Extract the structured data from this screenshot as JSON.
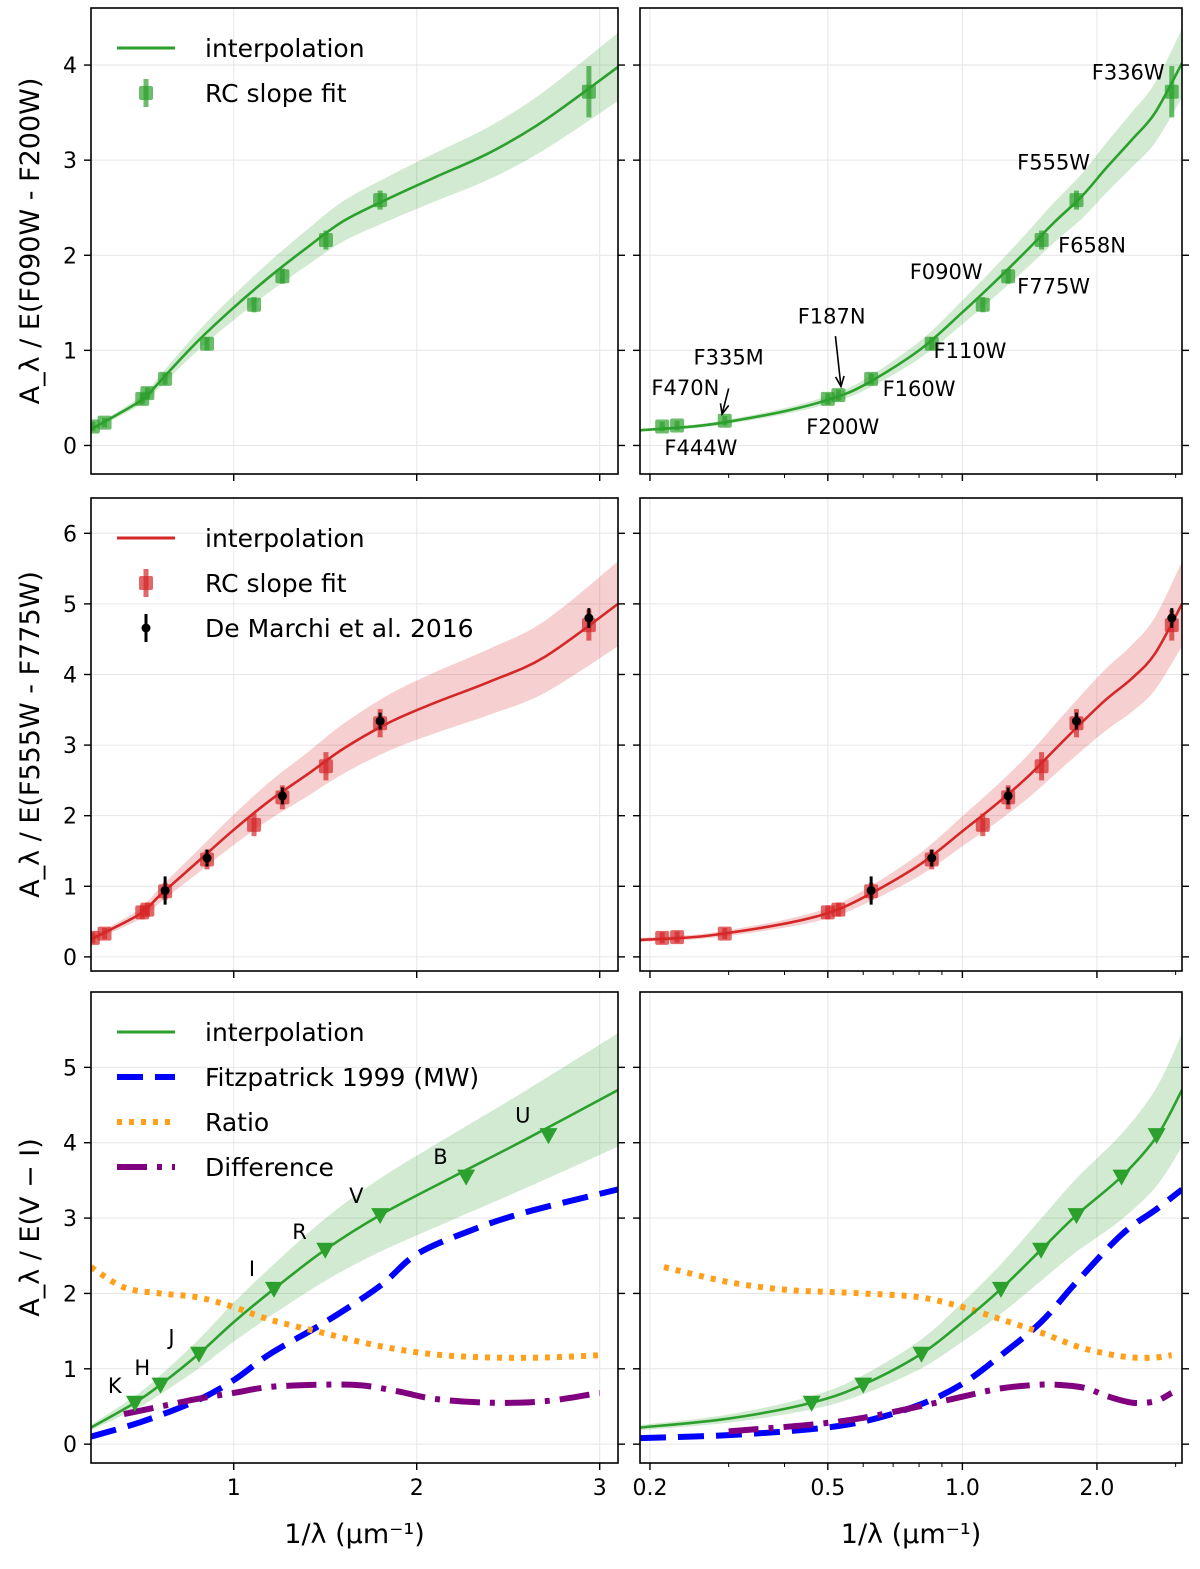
{
  "chart_data": [
    {
      "id": "p00",
      "type": "line",
      "xscale": "linear",
      "xlim": [
        0.22,
        3.1
      ],
      "ylim": [
        -0.3,
        4.6
      ],
      "xticks": [
        1,
        2,
        3
      ],
      "xticklabels": [
        "1",
        "2",
        "3"
      ],
      "show_xticklabels": false,
      "yticks": [
        0,
        1,
        2,
        3,
        4
      ],
      "yticklabels": [
        "0",
        "1",
        "2",
        "3",
        "4"
      ],
      "show_yticklabels": true,
      "ylabel": "A_λ / E(F090W - F200W)",
      "legend_loc": "upper-left",
      "curve": {
        "color": "#2ca02c",
        "band": 0.09,
        "x": [
          0.22,
          0.45,
          0.53,
          0.6,
          0.8,
          1.0,
          1.2,
          1.4,
          1.6,
          1.85,
          2.1,
          2.4,
          2.7,
          3.1
        ],
        "y": [
          0.17,
          0.42,
          0.53,
          0.68,
          1.09,
          1.45,
          1.78,
          2.08,
          2.36,
          2.6,
          2.82,
          3.08,
          3.42,
          3.98
        ]
      },
      "series": [
        {
          "name": "RC slope fit",
          "color": "#2ca02c",
          "marker": "square",
          "x": [
            0.23,
            0.294,
            0.5,
            0.528,
            0.625,
            0.854,
            1.111,
            1.266,
            1.504,
            1.8,
            2.941
          ],
          "y": [
            0.2,
            0.24,
            0.49,
            0.55,
            0.7,
            1.07,
            1.48,
            1.78,
            2.16,
            2.58,
            3.72
          ],
          "err": [
            0.05,
            0.05,
            0.06,
            0.06,
            0.06,
            0.07,
            0.08,
            0.08,
            0.1,
            0.1,
            0.27
          ]
        }
      ],
      "legend": [
        {
          "label": "interpolation",
          "kind": "line",
          "color": "#2ca02c"
        },
        {
          "label": "RC slope fit",
          "kind": "errsquare",
          "color": "#2ca02c"
        }
      ],
      "annotations": []
    },
    {
      "id": "p01",
      "type": "line",
      "xscale": "log",
      "xlim": [
        0.19,
        3.1
      ],
      "ylim": [
        -0.3,
        4.6
      ],
      "xticks": [
        0.2,
        0.5,
        1.0,
        2.0
      ],
      "xticklabels": [
        "0.2",
        "0.5",
        "1.0",
        "2.0"
      ],
      "show_xticklabels": false,
      "yticks": [
        0,
        1,
        2,
        3,
        4
      ],
      "yticklabels": [
        "0",
        "1",
        "2",
        "3",
        "4"
      ],
      "show_yticklabels": false,
      "ylabel": "",
      "legend_loc": "none",
      "curve": {
        "color": "#2ca02c",
        "band": 0.09,
        "x": [
          0.19,
          0.25,
          0.3,
          0.4,
          0.5,
          0.6,
          0.8,
          1.0,
          1.2,
          1.4,
          1.6,
          1.85,
          2.1,
          2.4,
          2.7,
          3.1
        ],
        "y": [
          0.16,
          0.2,
          0.25,
          0.36,
          0.48,
          0.63,
          1.0,
          1.4,
          1.75,
          2.06,
          2.34,
          2.62,
          2.92,
          3.22,
          3.5,
          4.02
        ]
      },
      "series": [
        {
          "name": "RC slope fit",
          "color": "#2ca02c",
          "marker": "square",
          "x": [
            0.213,
            0.23,
            0.294,
            0.5,
            0.528,
            0.625,
            0.854,
            1.111,
            1.266,
            1.504,
            1.8,
            2.941
          ],
          "y": [
            0.2,
            0.21,
            0.26,
            0.49,
            0.53,
            0.7,
            1.07,
            1.48,
            1.78,
            2.16,
            2.58,
            3.72
          ],
          "err": [
            0.05,
            0.05,
            0.05,
            0.06,
            0.06,
            0.06,
            0.07,
            0.08,
            0.08,
            0.1,
            0.1,
            0.27
          ]
        }
      ],
      "legend": [],
      "annotations": [
        {
          "text": "F336W",
          "x": 2.35,
          "y": 3.85
        },
        {
          "text": "F555W",
          "x": 1.6,
          "y": 2.9
        },
        {
          "text": "F658N",
          "x": 1.95,
          "y": 2.03
        },
        {
          "text": "F775W",
          "x": 1.6,
          "y": 1.6
        },
        {
          "text": "F090W",
          "x": 0.92,
          "y": 1.75
        },
        {
          "text": "F110W",
          "x": 1.04,
          "y": 0.92
        },
        {
          "text": "F160W",
          "x": 0.8,
          "y": 0.52
        },
        {
          "text": "F187N",
          "x": 0.51,
          "y": 1.28
        },
        {
          "text": "F335M",
          "x": 0.3,
          "y": 0.85
        },
        {
          "text": "F470N",
          "x": 0.24,
          "y": 0.53
        },
        {
          "text": "F200W",
          "x": 0.54,
          "y": 0.12
        },
        {
          "text": "F444W",
          "x": 0.26,
          "y": -0.1
        }
      ]
    },
    {
      "id": "p10",
      "type": "line",
      "xscale": "linear",
      "xlim": [
        0.22,
        3.1
      ],
      "ylim": [
        -0.2,
        6.5
      ],
      "xticks": [
        1,
        2,
        3
      ],
      "xticklabels": [
        "1",
        "2",
        "3"
      ],
      "show_xticklabels": false,
      "yticks": [
        0,
        1,
        2,
        3,
        4,
        5,
        6
      ],
      "yticklabels": [
        "0",
        "1",
        "2",
        "3",
        "4",
        "5",
        "6"
      ],
      "show_yticklabels": true,
      "ylabel": "A_λ / E(F555W - F775W)",
      "legend_loc": "upper-left",
      "curve": {
        "color": "#d62728",
        "band": 0.12,
        "x": [
          0.22,
          0.45,
          0.53,
          0.6,
          0.8,
          1.0,
          1.2,
          1.4,
          1.6,
          1.85,
          2.1,
          2.4,
          2.7,
          3.1
        ],
        "y": [
          0.25,
          0.55,
          0.7,
          0.88,
          1.34,
          1.8,
          2.22,
          2.58,
          2.95,
          3.32,
          3.6,
          3.9,
          4.25,
          5.0
        ]
      },
      "series": [
        {
          "name": "RC slope fit",
          "color": "#d62728",
          "marker": "square",
          "x": [
            0.23,
            0.294,
            0.5,
            0.528,
            0.625,
            0.854,
            1.111,
            1.266,
            1.504,
            1.8,
            2.941
          ],
          "y": [
            0.27,
            0.33,
            0.63,
            0.67,
            0.93,
            1.38,
            1.87,
            2.26,
            2.7,
            3.31,
            4.7
          ],
          "err": [
            0.08,
            0.08,
            0.1,
            0.1,
            0.12,
            0.14,
            0.16,
            0.17,
            0.2,
            0.2,
            0.22
          ]
        },
        {
          "name": "De Marchi et al. 2016",
          "color": "#000000",
          "marker": "circle",
          "x": [
            0.625,
            0.854,
            1.266,
            1.8,
            2.941
          ],
          "y": [
            0.94,
            1.4,
            2.28,
            3.34,
            4.8
          ],
          "err": [
            0.2,
            0.12,
            0.12,
            0.12,
            0.14
          ]
        }
      ],
      "legend": [
        {
          "label": "interpolation",
          "kind": "line",
          "color": "#d62728"
        },
        {
          "label": "RC slope fit",
          "kind": "errsquare",
          "color": "#d62728"
        },
        {
          "label": "De Marchi et al. 2016",
          "kind": "errdot",
          "color": "#000000"
        }
      ],
      "annotations": []
    },
    {
      "id": "p11",
      "type": "line",
      "xscale": "log",
      "xlim": [
        0.19,
        3.1
      ],
      "ylim": [
        -0.2,
        6.5
      ],
      "xticks": [
        0.2,
        0.5,
        1.0,
        2.0
      ],
      "xticklabels": [
        "0.2",
        "0.5",
        "1.0",
        "2.0"
      ],
      "show_xticklabels": false,
      "yticks": [
        0,
        1,
        2,
        3,
        4,
        5,
        6
      ],
      "yticklabels": [
        "0",
        "1",
        "2",
        "3",
        "4",
        "5",
        "6"
      ],
      "show_yticklabels": false,
      "ylabel": "",
      "legend_loc": "none",
      "curve": {
        "color": "#d62728",
        "band": 0.12,
        "x": [
          0.19,
          0.25,
          0.3,
          0.4,
          0.5,
          0.6,
          0.8,
          1.0,
          1.2,
          1.4,
          1.6,
          1.85,
          2.1,
          2.4,
          2.7,
          3.1
        ],
        "y": [
          0.24,
          0.28,
          0.34,
          0.47,
          0.62,
          0.84,
          1.3,
          1.78,
          2.18,
          2.55,
          2.92,
          3.32,
          3.65,
          3.95,
          4.3,
          5.0
        ]
      },
      "series": [
        {
          "name": "RC slope fit",
          "color": "#d62728",
          "marker": "square",
          "x": [
            0.213,
            0.23,
            0.294,
            0.5,
            0.528,
            0.625,
            0.854,
            1.111,
            1.266,
            1.504,
            1.8,
            2.941
          ],
          "y": [
            0.27,
            0.28,
            0.33,
            0.63,
            0.67,
            0.93,
            1.38,
            1.87,
            2.26,
            2.7,
            3.31,
            4.7
          ],
          "err": [
            0.08,
            0.08,
            0.08,
            0.1,
            0.1,
            0.12,
            0.14,
            0.16,
            0.17,
            0.2,
            0.2,
            0.22
          ]
        },
        {
          "name": "De Marchi et al. 2016",
          "color": "#000000",
          "marker": "circle",
          "x": [
            0.625,
            0.854,
            1.266,
            1.8,
            2.941
          ],
          "y": [
            0.94,
            1.4,
            2.28,
            3.34,
            4.8
          ],
          "err": [
            0.2,
            0.12,
            0.12,
            0.12,
            0.14
          ]
        }
      ],
      "legend": [],
      "annotations": []
    },
    {
      "id": "p20",
      "type": "line",
      "xscale": "linear",
      "xlim": [
        0.22,
        3.1
      ],
      "ylim": [
        -0.25,
        6.0
      ],
      "xticks": [
        1,
        2,
        3
      ],
      "xticklabels": [
        "1",
        "2",
        "3"
      ],
      "show_xticklabels": true,
      "yticks": [
        0,
        1,
        2,
        3,
        4,
        5
      ],
      "yticklabels": [
        "0",
        "1",
        "2",
        "3",
        "4",
        "5"
      ],
      "show_yticklabels": true,
      "xlabel": "1/λ (μm⁻¹)",
      "ylabel": "A_λ / E(V − I)",
      "legend_loc": "upper-left",
      "curve": {
        "color": "#2ca02c",
        "band": 0.16,
        "x": [
          0.22,
          0.46,
          0.6,
          0.81,
          1.0,
          1.22,
          1.5,
          1.8,
          2.2,
          2.6,
          3.1
        ],
        "y": [
          0.22,
          0.55,
          0.79,
          1.2,
          1.62,
          2.06,
          2.58,
          3.04,
          3.55,
          4.05,
          4.7
        ]
      },
      "lines": [
        {
          "name": "Fitzpatrick 1999 (MW)",
          "color": "#0000ff",
          "dash": "dash",
          "x": [
            0.22,
            0.5,
            0.8,
            1.0,
            1.2,
            1.5,
            1.8,
            2.0,
            2.3,
            2.6,
            3.1
          ],
          "y": [
            0.1,
            0.3,
            0.58,
            0.85,
            1.2,
            1.62,
            2.1,
            2.52,
            2.84,
            3.08,
            3.38
          ]
        },
        {
          "name": "Ratio",
          "color": "#ff9f1a",
          "dash": "dot",
          "x": [
            0.22,
            0.4,
            0.6,
            0.8,
            1.0,
            1.2,
            1.5,
            1.8,
            2.1,
            2.4,
            2.7,
            3.0
          ],
          "y": [
            2.35,
            2.08,
            2.0,
            1.95,
            1.82,
            1.65,
            1.47,
            1.3,
            1.19,
            1.15,
            1.15,
            1.18
          ]
        },
        {
          "name": "Difference",
          "color": "#800080",
          "dash": "dashdot",
          "x": [
            0.4,
            0.6,
            0.8,
            1.0,
            1.2,
            1.5,
            1.7,
            1.9,
            2.1,
            2.4,
            2.7,
            3.0
          ],
          "y": [
            0.4,
            0.5,
            0.6,
            0.68,
            0.76,
            0.79,
            0.78,
            0.7,
            0.6,
            0.55,
            0.57,
            0.68
          ]
        }
      ],
      "series": [
        {
          "name": "bands",
          "color": "#2ca02c",
          "marker": "triangle",
          "x": [
            0.46,
            0.6,
            0.81,
            1.22,
            1.5,
            1.8,
            2.27,
            2.72
          ],
          "y": [
            0.55,
            0.79,
            1.2,
            2.06,
            2.58,
            3.04,
            3.55,
            4.1
          ],
          "err": []
        }
      ],
      "legend": [
        {
          "label": "interpolation",
          "kind": "line",
          "color": "#2ca02c"
        },
        {
          "label": "Fitzpatrick 1999 (MW)",
          "kind": "dash",
          "color": "#0000ff"
        },
        {
          "label": "Ratio",
          "kind": "dot",
          "color": "#ff9f1a"
        },
        {
          "label": "Difference",
          "kind": "dashdot",
          "color": "#800080"
        }
      ],
      "annotations": [
        {
          "text": "K",
          "x": 0.35,
          "y": 0.68
        },
        {
          "text": "H",
          "x": 0.5,
          "y": 0.92
        },
        {
          "text": "J",
          "x": 0.66,
          "y": 1.32
        },
        {
          "text": "I",
          "x": 1.1,
          "y": 2.23
        },
        {
          "text": "R",
          "x": 1.36,
          "y": 2.72
        },
        {
          "text": "V",
          "x": 1.67,
          "y": 3.2
        },
        {
          "text": "B",
          "x": 2.13,
          "y": 3.72
        },
        {
          "text": "U",
          "x": 2.58,
          "y": 4.27
        }
      ]
    },
    {
      "id": "p21",
      "type": "line",
      "xscale": "log",
      "xlim": [
        0.19,
        3.1
      ],
      "ylim": [
        -0.25,
        6.0
      ],
      "xticks": [
        0.2,
        0.5,
        1.0,
        2.0
      ],
      "xticklabels": [
        "0.2",
        "0.5",
        "1.0",
        "2.0"
      ],
      "show_xticklabels": true,
      "yticks": [
        0,
        1,
        2,
        3,
        4,
        5
      ],
      "yticklabels": [
        "0",
        "1",
        "2",
        "3",
        "4",
        "5"
      ],
      "show_yticklabels": false,
      "xlabel": "1/λ (μm⁻¹)",
      "ylabel": "",
      "legend_loc": "none",
      "curve": {
        "color": "#2ca02c",
        "band": 0.16,
        "x": [
          0.19,
          0.3,
          0.46,
          0.6,
          0.81,
          1.0,
          1.22,
          1.5,
          1.8,
          2.27,
          2.72,
          3.1
        ],
        "y": [
          0.22,
          0.34,
          0.55,
          0.79,
          1.2,
          1.62,
          2.06,
          2.58,
          3.04,
          3.55,
          4.08,
          4.7
        ]
      },
      "lines": [
        {
          "name": "Fitzpatrick 1999 (MW)",
          "color": "#0000ff",
          "dash": "dash",
          "x": [
            0.19,
            0.3,
            0.46,
            0.6,
            0.8,
            1.0,
            1.22,
            1.5,
            1.8,
            2.27,
            2.72,
            3.1
          ],
          "y": [
            0.08,
            0.12,
            0.2,
            0.3,
            0.52,
            0.8,
            1.18,
            1.62,
            2.15,
            2.78,
            3.12,
            3.38
          ]
        },
        {
          "name": "Ratio",
          "color": "#ff9f1a",
          "dash": "dot",
          "x": [
            0.215,
            0.3,
            0.4,
            0.5,
            0.6,
            0.8,
            1.0,
            1.2,
            1.5,
            1.8,
            2.1,
            2.4,
            2.7,
            2.94
          ],
          "y": [
            2.35,
            2.15,
            2.05,
            2.02,
            2.0,
            1.95,
            1.82,
            1.67,
            1.48,
            1.3,
            1.2,
            1.15,
            1.15,
            1.18
          ]
        },
        {
          "name": "Difference",
          "color": "#800080",
          "dash": "dashdot",
          "x": [
            0.3,
            0.46,
            0.6,
            0.8,
            1.0,
            1.22,
            1.5,
            1.7,
            1.9,
            2.1,
            2.4,
            2.7,
            2.94
          ],
          "y": [
            0.17,
            0.26,
            0.35,
            0.5,
            0.63,
            0.74,
            0.79,
            0.78,
            0.74,
            0.64,
            0.55,
            0.57,
            0.68
          ]
        }
      ],
      "series": [
        {
          "name": "bands",
          "color": "#2ca02c",
          "marker": "triangle",
          "x": [
            0.46,
            0.6,
            0.81,
            1.22,
            1.5,
            1.8,
            2.27,
            2.72
          ],
          "y": [
            0.55,
            0.79,
            1.2,
            2.06,
            2.58,
            3.04,
            3.55,
            4.1
          ],
          "err": []
        }
      ],
      "legend": [],
      "annotations": []
    }
  ]
}
